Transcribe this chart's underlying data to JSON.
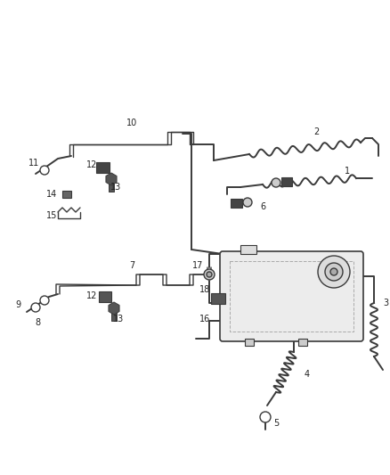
{
  "bg_color": "#ffffff",
  "line_color": "#3a3a3a",
  "label_color": "#222222",
  "figsize": [
    4.38,
    5.33
  ],
  "dpi": 100,
  "lw": 1.4,
  "label_fs": 7.0
}
